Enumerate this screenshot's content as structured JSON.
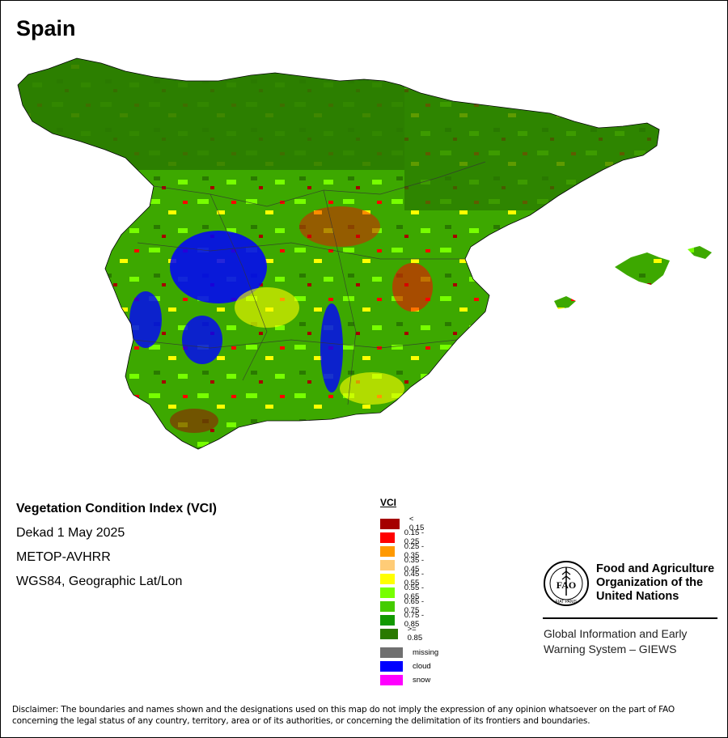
{
  "title": "Spain",
  "info": {
    "index_name": "Vegetation Condition Index (VCI)",
    "period": "Dekad 1 May 2025",
    "sensor": "METOP-AVHRR",
    "projection": "WGS84, Geographic Lat/Lon"
  },
  "legend": {
    "title": "VCI",
    "classes": [
      {
        "label": "< 0.15",
        "color": "#a50000"
      },
      {
        "label": "0.15 - 0.25",
        "color": "#ff0000"
      },
      {
        "label": "0.25 - 0.35",
        "color": "#ff9900"
      },
      {
        "label": "0.35 - 0.45",
        "color": "#ffcc77"
      },
      {
        "label": "0.45 - 0.55",
        "color": "#ffff00"
      },
      {
        "label": "0.55 - 0.65",
        "color": "#77ff00"
      },
      {
        "label": "0.65 - 0.75",
        "color": "#44cc00"
      },
      {
        "label": "0.75 - 0.85",
        "color": "#119900"
      },
      {
        "label": ">= 0.85",
        "color": "#2a7a00"
      }
    ],
    "special": [
      {
        "label": "missing",
        "color": "#707070"
      },
      {
        "label": "cloud",
        "color": "#0000ff"
      },
      {
        "label": "snow",
        "color": "#ff00ff"
      }
    ]
  },
  "fao": {
    "logo_text": "FAO",
    "motto": "FIAT PANIS",
    "name": "Food and Agriculture Organization of the United Nations",
    "system": "Global Information and Early Warning System – GIEWS"
  },
  "disclaimer": "Disclaimer: The boundaries and names shown and the designations used on this map do not imply the expression of any opinion whatsoever on the part of FAO concerning the legal status of any country, territory, area or of its authorities, or concerning the delimitation of its frontiers and boundaries."
}
